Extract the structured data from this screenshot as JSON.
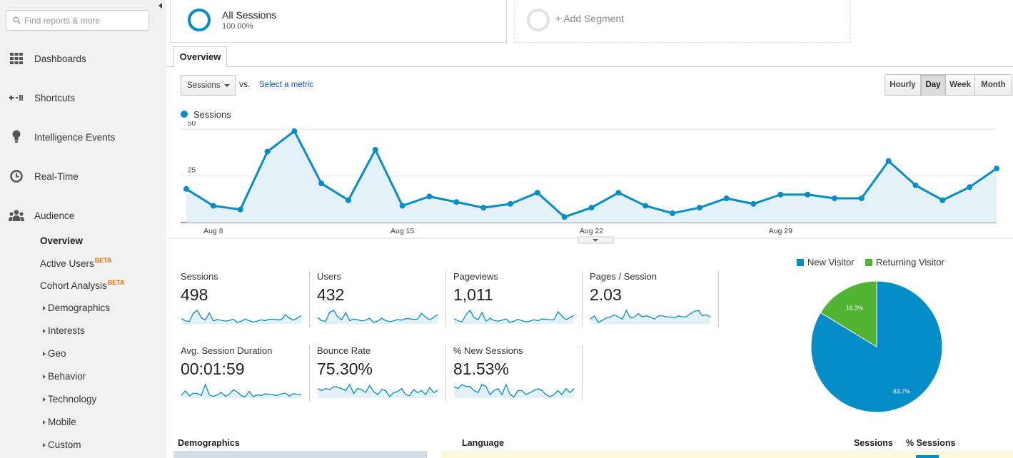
{
  "search": {
    "placeholder": "Find reports & more"
  },
  "nav": {
    "dashboards": "Dashboards",
    "shortcuts": "Shortcuts",
    "intelligence": "Intelligence Events",
    "realtime": "Real-Time",
    "audience": "Audience"
  },
  "audience_sub": {
    "overview": "Overview",
    "active_users": "Active Users",
    "cohort": "Cohort Analysis",
    "beta": "BETA",
    "demographics": "Demographics",
    "interests": "Interests",
    "geo": "Geo",
    "behavior": "Behavior",
    "technology": "Technology",
    "mobile": "Mobile",
    "custom": "Custom"
  },
  "segments": {
    "all_title": "All Sessions",
    "all_pct": "100.00%",
    "add": "+ Add Segment"
  },
  "tab": {
    "overview": "Overview"
  },
  "controls": {
    "metric": "Sessions",
    "vs": "vs.",
    "select_metric": "Select a metric",
    "granularity": [
      "Hourly",
      "Day",
      "Week",
      "Month"
    ],
    "active_granularity": "Day"
  },
  "chart_data": {
    "type": "line",
    "series": [
      {
        "name": "Sessions",
        "values": [
          18,
          9,
          7,
          38,
          49,
          21,
          12,
          39,
          9,
          14,
          11,
          8,
          10,
          16,
          3,
          8,
          16,
          9,
          5,
          8,
          13,
          10,
          15,
          15,
          13,
          13,
          33,
          20,
          12,
          19,
          29
        ]
      }
    ],
    "x_tick_labels": [
      "Aug 8",
      "Aug 15",
      "Aug 22",
      "Aug 29"
    ],
    "y_tick_labels": [
      "25",
      "50"
    ],
    "ylim": [
      0,
      52
    ],
    "color": "#058dc7",
    "fill": "#e4f1f8"
  },
  "scorecards": [
    {
      "label": "Sessions",
      "value": "498",
      "spark": [
        18,
        9,
        7,
        38,
        49,
        21,
        12,
        39,
        9,
        14,
        11,
        8,
        10,
        16,
        3,
        8,
        16,
        9,
        5,
        8,
        13,
        10,
        15,
        15,
        13,
        13,
        33,
        20,
        12,
        19,
        29
      ]
    },
    {
      "label": "Users",
      "value": "432",
      "spark": [
        16,
        8,
        6,
        30,
        35,
        18,
        10,
        29,
        8,
        12,
        10,
        7,
        9,
        14,
        3,
        7,
        14,
        8,
        5,
        7,
        11,
        9,
        13,
        13,
        11,
        12,
        27,
        17,
        10,
        16,
        24
      ]
    },
    {
      "label": "Pageviews",
      "value": "1,011",
      "spark": [
        30,
        18,
        10,
        60,
        90,
        40,
        25,
        75,
        15,
        35,
        20,
        15,
        22,
        30,
        6,
        15,
        28,
        18,
        10,
        15,
        25,
        18,
        30,
        28,
        25,
        24,
        80,
        50,
        24,
        40,
        55
      ]
    },
    {
      "label": "Pages / Session",
      "value": "2.03",
      "spark": [
        1.7,
        2.0,
        1.4,
        1.6,
        1.8,
        1.9,
        2.1,
        1.9,
        1.7,
        2.5,
        1.8,
        1.9,
        2.2,
        1.9,
        2.0,
        1.9,
        1.7,
        2.0,
        2.0,
        1.9,
        1.9,
        1.8,
        2.0,
        1.9,
        1.9,
        2.2,
        2.4,
        2.5,
        2.0,
        2.1,
        1.9
      ]
    },
    {
      "label": "Avg. Session Duration",
      "value": "00:01:59",
      "spark": [
        60,
        140,
        55,
        100,
        95,
        60,
        250,
        70,
        45,
        70,
        115,
        45,
        80,
        160,
        120,
        55,
        40,
        130,
        40,
        70,
        60,
        90,
        80,
        70,
        60,
        90,
        100,
        50,
        90,
        80,
        75
      ]
    },
    {
      "label": "Bounce Rate",
      "value": "75.30%",
      "spark": [
        80,
        78,
        80,
        79,
        82,
        81,
        80,
        78,
        84,
        75,
        80,
        79,
        76,
        83,
        77,
        74,
        79,
        78,
        72,
        76,
        77,
        80,
        74,
        73,
        79,
        76,
        78,
        74,
        81,
        76,
        78
      ]
    },
    {
      "label": "% New Sessions",
      "value": "81.53%",
      "spark": [
        84,
        83,
        85,
        84,
        84,
        82,
        81,
        85,
        84,
        80,
        82,
        83,
        80,
        85,
        80,
        79,
        82,
        82,
        80,
        81,
        82,
        83,
        82,
        80,
        79,
        80,
        82,
        80,
        83,
        81,
        83
      ]
    }
  ],
  "pie_chart": {
    "type": "pie",
    "labels": [
      "New Visitor",
      "Returning Visitor"
    ],
    "values": [
      83.7,
      16.3
    ],
    "value_labels": [
      "83.7%",
      "16.3%"
    ],
    "colors": [
      "#058dc7",
      "#50b432"
    ]
  },
  "bottom": {
    "demographics": "Demographics",
    "language": "Language",
    "sessions": "Sessions",
    "pct_sessions": "% Sessions"
  }
}
